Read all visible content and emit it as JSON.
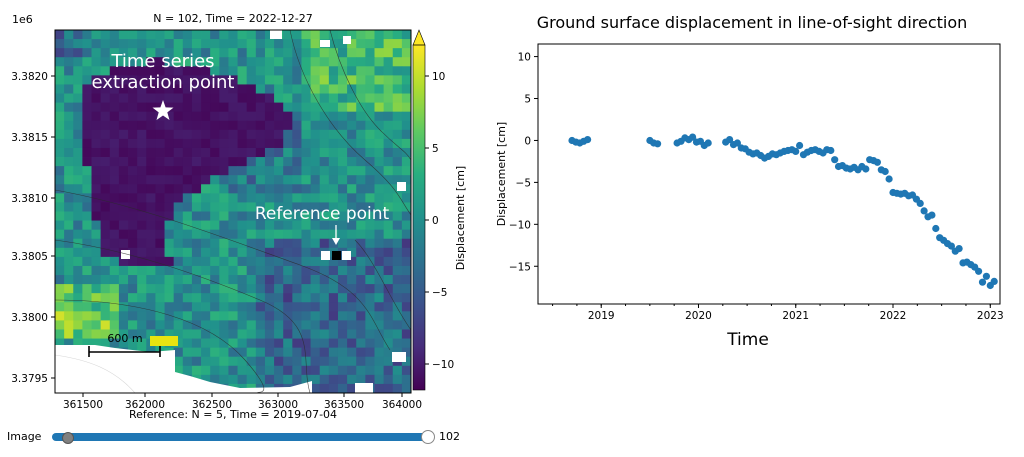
{
  "map_panel": {
    "title": "N = 102, Time = 2022-12-27",
    "bottom_label": "Reference: N = 5, Time = 2019-07-04",
    "y_offset_label": "1e6",
    "x_ticks": [
      "361500",
      "362000",
      "362500",
      "363000",
      "363500",
      "364000"
    ],
    "y_ticks": [
      "3.3820",
      "3.3815",
      "3.3810",
      "3.3805",
      "3.3800",
      "3.3795"
    ],
    "colorbar_label": "Displacement [cm]",
    "colorbar_ticks": [
      "10",
      "5",
      "0",
      "−5",
      "−10"
    ],
    "annotation_ts_line1": "Time series",
    "annotation_ts_line2": "extraction point",
    "annotation_ref": "Reference point",
    "scalebar_label": "600 m",
    "colormap": "viridis"
  },
  "slider": {
    "label": "Image",
    "value": "102"
  },
  "chart_data": {
    "type": "scatter",
    "title": "Ground surface displacement in line-of-sight direction",
    "xlabel": "Time",
    "ylabel": "Displacement [cm]",
    "xlim": [
      2018.35,
      2023.1
    ],
    "ylim": [
      -19.5,
      11.5
    ],
    "x_ticks": [
      2019,
      2020,
      2021,
      2022,
      2023
    ],
    "y_ticks": [
      10,
      5,
      0,
      -5,
      -10,
      -15
    ],
    "color": "#1f77b4",
    "grid": false,
    "series": [
      {
        "x": [
          2018.7,
          2018.74,
          2018.78,
          2018.82,
          2018.86,
          2019.5,
          2019.54,
          2019.58,
          2019.78,
          2019.82,
          2019.86,
          2019.9,
          2019.94,
          2019.98,
          2020.02,
          2020.06,
          2020.1,
          2020.28,
          2020.32,
          2020.36,
          2020.4,
          2020.44,
          2020.48,
          2020.52,
          2020.56,
          2020.6,
          2020.64,
          2020.68,
          2020.72,
          2020.76,
          2020.8,
          2020.84,
          2020.88,
          2020.92,
          2020.96,
          2021.0,
          2021.04,
          2021.08,
          2021.12,
          2021.16,
          2021.2,
          2021.24,
          2021.28,
          2021.32,
          2021.36,
          2021.4,
          2021.44,
          2021.48,
          2021.52,
          2021.56,
          2021.6,
          2021.64,
          2021.68,
          2021.72,
          2021.76,
          2021.8,
          2021.84,
          2021.88,
          2021.92,
          2021.96,
          2022.0,
          2022.04,
          2022.08,
          2022.12,
          2022.16,
          2022.2,
          2022.24,
          2022.28,
          2022.32,
          2022.36,
          2022.4,
          2022.44,
          2022.48,
          2022.52,
          2022.56,
          2022.6,
          2022.64,
          2022.68,
          2022.72,
          2022.76,
          2022.8,
          2022.84,
          2022.88,
          2022.92,
          2022.96,
          2023.0,
          2023.04
        ],
        "y": [
          0,
          -0.2,
          -0.3,
          -0.1,
          0.1,
          0,
          -0.3,
          -0.4,
          -0.3,
          -0.1,
          0.3,
          0.1,
          0.4,
          -0.2,
          -0.1,
          -0.6,
          -0.3,
          -0.2,
          0.1,
          -0.5,
          -0.3,
          -0.9,
          -1.0,
          -1.4,
          -1.6,
          -1.5,
          -1.8,
          -2.1,
          -1.9,
          -1.6,
          -1.7,
          -1.5,
          -1.3,
          -1.2,
          -1.1,
          -1.3,
          -0.6,
          -1.7,
          -1.4,
          -1.2,
          -1.1,
          -1.3,
          -1.5,
          -1.1,
          -1.2,
          -2.3,
          -3.1,
          -3.0,
          -3.3,
          -3.4,
          -3.2,
          -3.5,
          -3.1,
          -3.4,
          -2.3,
          -2.4,
          -2.6,
          -3.5,
          -3.7,
          -4.6,
          -6.2,
          -6.3,
          -6.4,
          -6.3,
          -6.6,
          -6.5,
          -7.0,
          -7.5,
          -8.4,
          -9.1,
          -8.9,
          -10.5,
          -11.6,
          -11.9,
          -12.3,
          -12.6,
          -13.2,
          -12.9,
          -14.6,
          -14.5,
          -14.8,
          -15.1,
          -15.6,
          -16.9,
          -16.2,
          -17.3,
          -16.8
        ]
      }
    ]
  }
}
